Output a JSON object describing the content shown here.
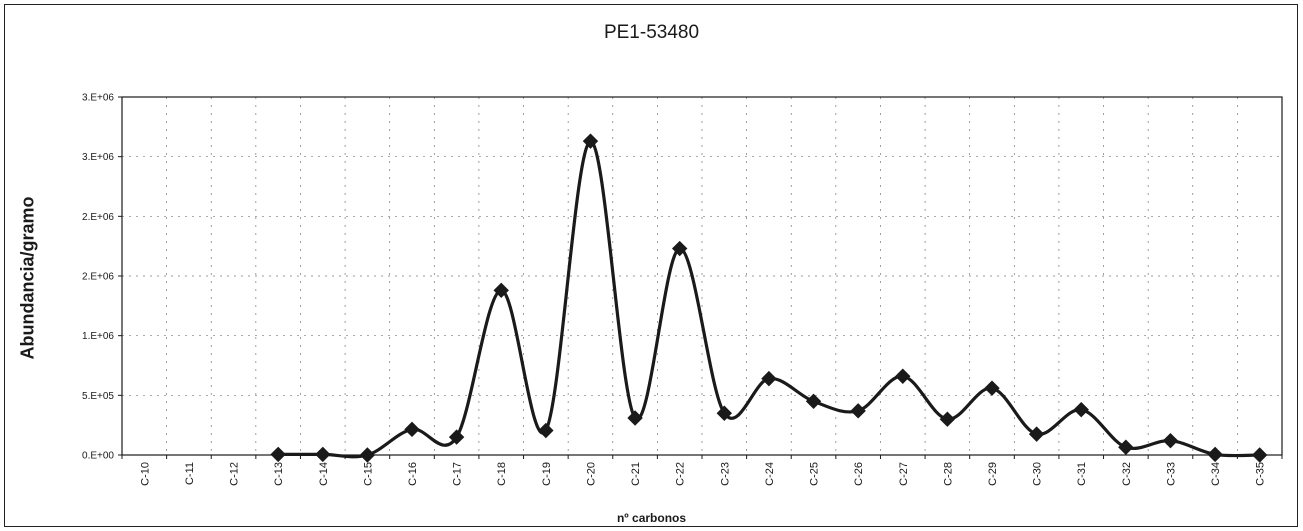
{
  "chart_data": {
    "type": "line",
    "title": "PE1-53480",
    "xlabel": "nº carbonos",
    "ylabel": "Abundancia/gramo",
    "categories": [
      "C-10",
      "C-11",
      "C-12",
      "C-13",
      "C-14",
      "C-15",
      "C-16",
      "C-17",
      "C-18",
      "C-19",
      "C-20",
      "C-21",
      "C-22",
      "C-23",
      "C-24",
      "C-25",
      "C-26",
      "C-27",
      "C-28",
      "C-29",
      "C-30",
      "C-31",
      "C-32",
      "C-33",
      "C-34",
      "C-35"
    ],
    "series": [
      {
        "values": [
          null,
          null,
          null,
          5000,
          5000,
          0,
          215000,
          150000,
          1380000,
          205000,
          2630000,
          310000,
          1730000,
          350000,
          640000,
          450000,
          370000,
          660000,
          300000,
          560000,
          175000,
          380000,
          65000,
          120000,
          5000,
          0
        ],
        "color": "#1a1a1a",
        "marker": "diamond",
        "smooth": true
      }
    ],
    "yticks": [
      "0.E+00",
      "5.E+05",
      "1.E+06",
      "2.E+06",
      "2.E+06",
      "3.E+06",
      "3.E+06"
    ],
    "ytick_values": [
      0,
      500000,
      1000000,
      1500000,
      2000000,
      2500000,
      3000000
    ],
    "ylim": [
      0,
      3000000
    ],
    "grid": true
  }
}
